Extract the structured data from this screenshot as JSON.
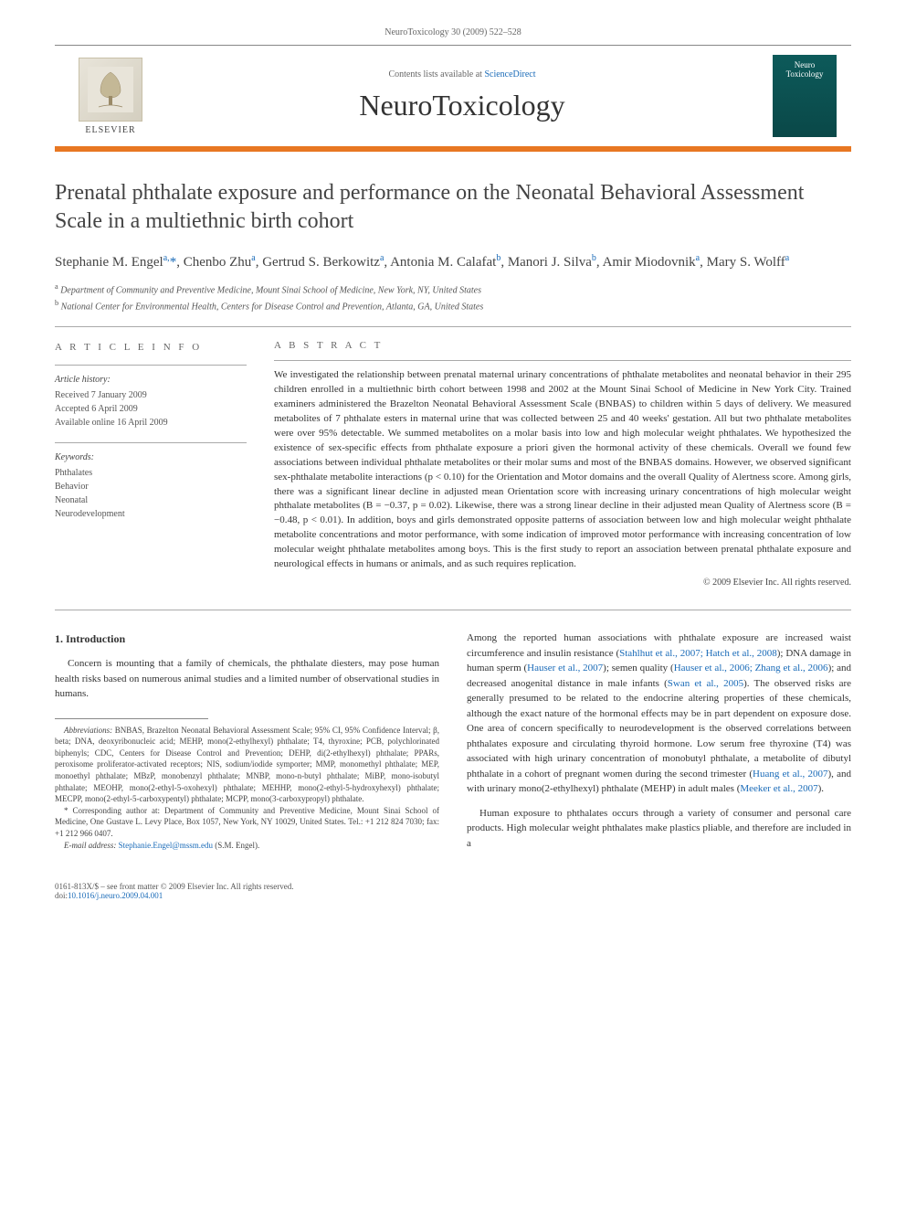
{
  "header": {
    "meta": "NeuroToxicology 30 (2009) 522–528",
    "contents_prefix": "Contents lists available at ",
    "contents_link": "ScienceDirect",
    "journal_title": "NeuroToxicology",
    "publisher_name": "ELSEVIER",
    "cover_line1": "Neuro",
    "cover_line2": "Toxicology"
  },
  "title": "Prenatal phthalate exposure and performance on the Neonatal Behavioral Assessment Scale in a multiethnic birth cohort",
  "authors_html": "Stephanie M. Engel<sup>a,</sup><span class='corr'>*</span>, Chenbo Zhu<sup>a</sup>, Gertrud S. Berkowitz<sup>a</sup>, Antonia M. Calafat<sup>b</sup>, Manori J. Silva<sup>b</sup>, Amir Miodovnik<sup>a</sup>, Mary S. Wolff<sup>a</sup>",
  "affiliations": [
    {
      "sup": "a",
      "text": "Department of Community and Preventive Medicine, Mount Sinai School of Medicine, New York, NY, United States"
    },
    {
      "sup": "b",
      "text": "National Center for Environmental Health, Centers for Disease Control and Prevention, Atlanta, GA, United States"
    }
  ],
  "info": {
    "heading": "A R T I C L E  I N F O",
    "history_head": "Article history:",
    "history": [
      "Received 7 January 2009",
      "Accepted 6 April 2009",
      "Available online 16 April 2009"
    ],
    "keywords_head": "Keywords:",
    "keywords": [
      "Phthalates",
      "Behavior",
      "Neonatal",
      "Neurodevelopment"
    ]
  },
  "abstract": {
    "heading": "A B S T R A C T",
    "text": "We investigated the relationship between prenatal maternal urinary concentrations of phthalate metabolites and neonatal behavior in their 295 children enrolled in a multiethnic birth cohort between 1998 and 2002 at the Mount Sinai School of Medicine in New York City. Trained examiners administered the Brazelton Neonatal Behavioral Assessment Scale (BNBAS) to children within 5 days of delivery. We measured metabolites of 7 phthalate esters in maternal urine that was collected between 25 and 40 weeks' gestation. All but two phthalate metabolites were over 95% detectable. We summed metabolites on a molar basis into low and high molecular weight phthalates. We hypothesized the existence of sex-specific effects from phthalate exposure a priori given the hormonal activity of these chemicals. Overall we found few associations between individual phthalate metabolites or their molar sums and most of the BNBAS domains. However, we observed significant sex-phthalate metabolite interactions (p < 0.10) for the Orientation and Motor domains and the overall Quality of Alertness score. Among girls, there was a significant linear decline in adjusted mean Orientation score with increasing urinary concentrations of high molecular weight phthalate metabolites (B = −0.37, p = 0.02). Likewise, there was a strong linear decline in their adjusted mean Quality of Alertness score (B = −0.48, p < 0.01). In addition, boys and girls demonstrated opposite patterns of association between low and high molecular weight phthalate metabolite concentrations and motor performance, with some indication of improved motor performance with increasing concentration of low molecular weight phthalate metabolites among boys. This is the first study to report an association between prenatal phthalate exposure and neurological effects in humans or animals, and as such requires replication.",
    "copyright": "© 2009 Elsevier Inc. All rights reserved."
  },
  "body": {
    "intro_head": "1. Introduction",
    "left_p1": "Concern is mounting that a family of chemicals, the phthalate diesters, may pose human health risks based on numerous animal studies and a limited number of observational studies in humans.",
    "right_p1_pre": "Among the reported human associations with phthalate exposure are increased waist circumference and insulin resistance (",
    "right_p1_ref1": "Stahlhut et al., 2007; Hatch et al., 2008",
    "right_p1_mid1": "); DNA damage in human sperm (",
    "right_p1_ref2": "Hauser et al., 2007",
    "right_p1_mid2": "); semen quality (",
    "right_p1_ref3": "Hauser et al., 2006; Zhang et al., 2006",
    "right_p1_mid3": "); and decreased anogenital distance in male infants (",
    "right_p1_ref4": "Swan et al., 2005",
    "right_p1_mid4": "). The observed risks are generally presumed to be related to the endocrine altering properties of these chemicals, although the exact nature of the hormonal effects may be in part dependent on exposure dose. One area of concern specifically to neurodevelopment is the observed correlations between phthalates exposure and circulating thyroid hormone. Low serum free thyroxine (T4) was associated with high urinary concentration of monobutyl phthalate, a metabolite of dibutyl phthalate in a cohort of pregnant women during the second trimester (",
    "right_p1_ref5": "Huang et al., 2007",
    "right_p1_mid5": "), and with urinary mono(2-ethylhexyl) phthalate (MEHP) in adult males (",
    "right_p1_ref6": "Meeker et al., 2007",
    "right_p1_end": ").",
    "right_p2": "Human exposure to phthalates occurs through a variety of consumer and personal care products. High molecular weight phthalates make plastics pliable, and therefore are included in a"
  },
  "footnotes": {
    "abbrev_label": "Abbreviations:",
    "abbrev_text": " BNBAS, Brazelton Neonatal Behavioral Assessment Scale; 95% CI, 95% Confidence Interval; β, beta; DNA, deoxyribonucleic acid; MEHP, mono(2-ethylhexyl) phthalate; T4, thyroxine; PCB, polychlorinated biphenyls; CDC, Centers for Disease Control and Prevention; DEHP, di(2-ethylhexyl) phthalate; PPARs, peroxisome proliferator-activated receptors; NIS, sodium/iodide symporter; MMP, monomethyl phthalate; MEP, monoethyl phthalate; MBzP, monobenzyl phthalate; MNBP, mono-n-butyl phthalate; MiBP, mono-isobutyl phthalate; MEOHP, mono(2-ethyl-5-oxohexyl) phthalate; MEHHP, mono(2-ethyl-5-hydroxyhexyl) phthalate; MECPP, mono(2-ethyl-5-carboxypentyl) phthalate; MCPP, mono(3-carboxypropyl) phthalate.",
    "corr_label": "* Corresponding author at:",
    "corr_text": " Department of Community and Preventive Medicine, Mount Sinai School of Medicine, One Gustave L. Levy Place, Box 1057, New York, NY 10029, United States. Tel.: +1 212 824 7030; fax: +1 212 966 0407.",
    "email_label": "E-mail address:",
    "email_link": "Stephanie.Engel@mssm.edu",
    "email_tail": " (S.M. Engel)."
  },
  "footer": {
    "left_line1": "0161-813X/$ – see front matter © 2009 Elsevier Inc. All rights reserved.",
    "left_line2_pre": "doi:",
    "doi": "10.1016/j.neuro.2009.04.001"
  },
  "colors": {
    "accent_orange": "#e87722",
    "link_blue": "#1a6bb8",
    "cover_teal": "#0d5a5a"
  },
  "typography": {
    "title_fontsize": 24,
    "journal_fontsize": 32,
    "body_fontsize": 11,
    "abstract_fontsize": 11,
    "footnote_fontsize": 9
  }
}
